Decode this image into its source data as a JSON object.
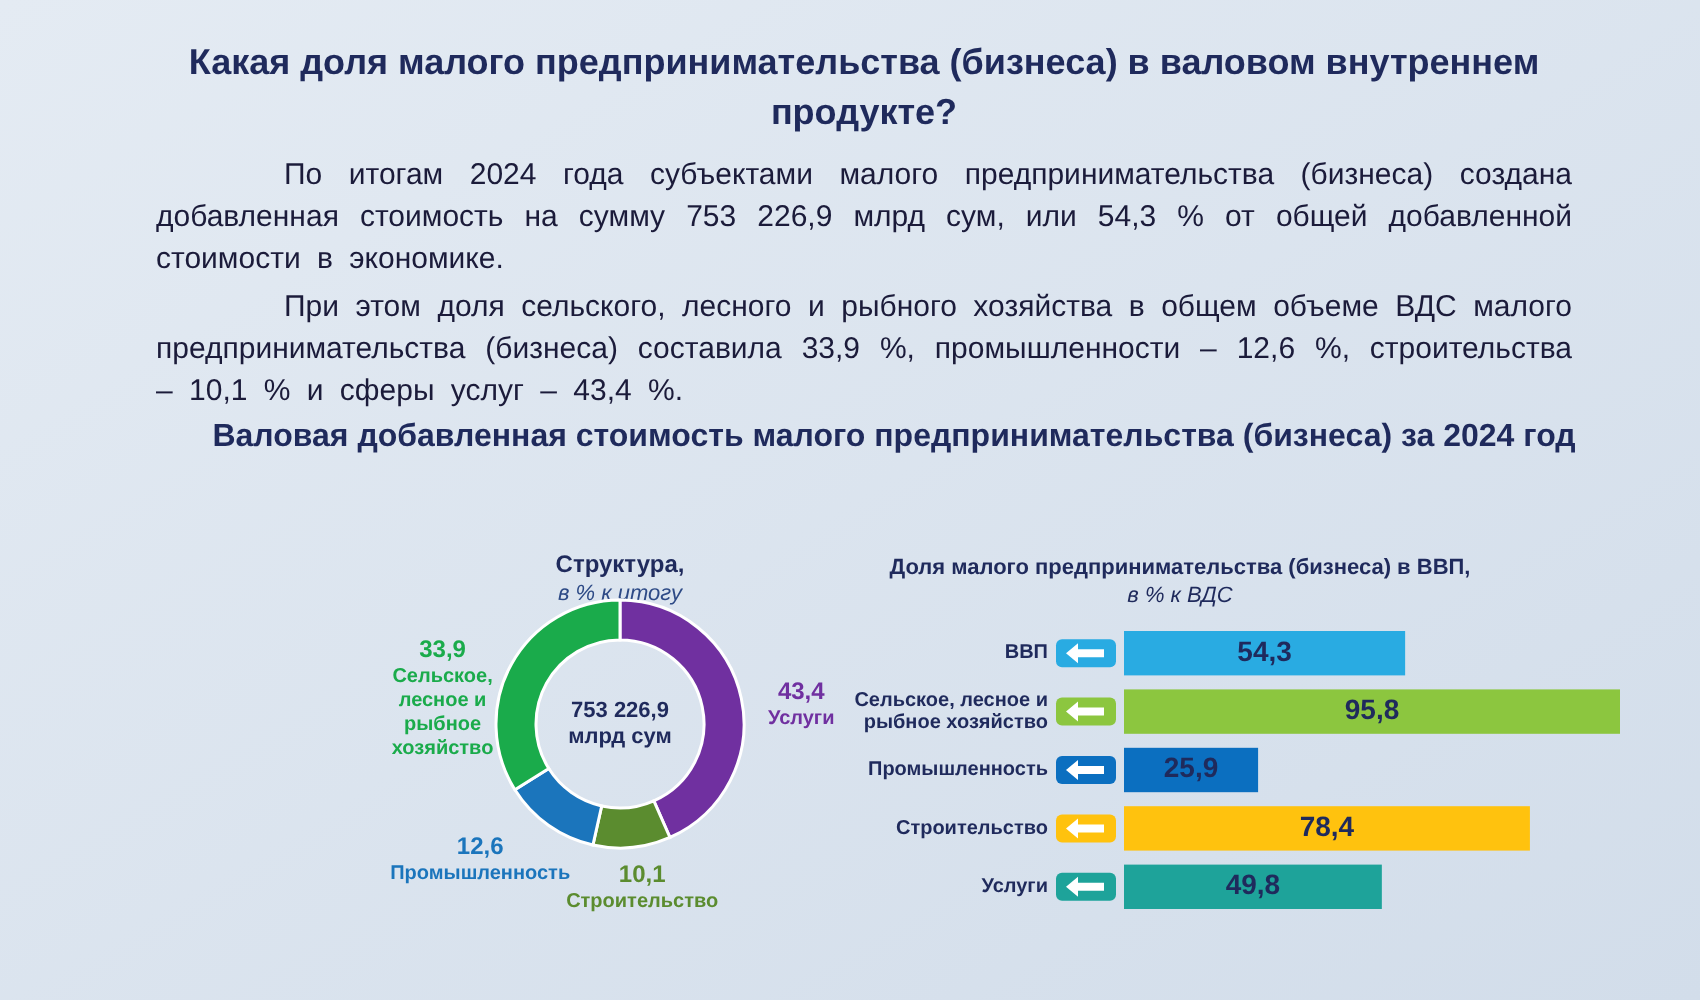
{
  "chart_data": [
    {
      "type": "other",
      "title": "Какая доля малого предпринимательства (бизнеса) в валовом внутреннем продукте?",
      "annotations": [
        "По итогам 2024 года субъектами малого предпринимательства (бизнеса) создана добавленная стоимость на сумму 753 226,9 млрд сум, или 54,3 % от общей добавленной стоимости в экономике.",
        "При этом доля сельского, лесного и рыбного хозяйства в общем объеме ВДС малого предпринимательства (бизнеса) составила 33,9 %, промышленности – 12,6 %, строительства – 10,1 % и сферы услуг – 43,4 %."
      ],
      "subtitle": "Валовая добавленная стоимость малого предпринимательства (бизнеса) за 2024 год"
    },
    {
      "type": "donut",
      "title": "Структура,",
      "subtitle": "в % к итогу",
      "categories": [
        "Услуги",
        "Строительство",
        "Промышленность",
        "Сельское, лесное и рыбное хозяйство"
      ],
      "values": [
        43.4,
        10.1,
        12.6,
        33.9
      ],
      "colors": [
        "#7030a0",
        "#5b8c2f",
        "#1b75bc",
        "#1aab4b"
      ],
      "value_labels": [
        "43,4",
        "10,1",
        "12,6",
        "33,9"
      ],
      "annotations": [
        "753 226,9 млрд сум"
      ]
    },
    {
      "type": "bar",
      "orientation": "horizontal",
      "title": "Доля малого предпринимательства (бизнеса) в ВВП,",
      "subtitle": "в % к ВДС",
      "categories": [
        "ВВП",
        "Сельское, лесное и рыбное хозяйство",
        "Промышленность",
        "Строительство",
        "Услуги"
      ],
      "values": [
        54.3,
        95.8,
        25.9,
        78.4,
        49.8
      ],
      "colors": [
        "#29abe2",
        "#8cc63f",
        "#0b6fc0",
        "#ffc20e",
        "#1ea39a"
      ],
      "value_labels": [
        "54,3",
        "95,8",
        "25,9",
        "78,4",
        "49,8"
      ]
    }
  ]
}
